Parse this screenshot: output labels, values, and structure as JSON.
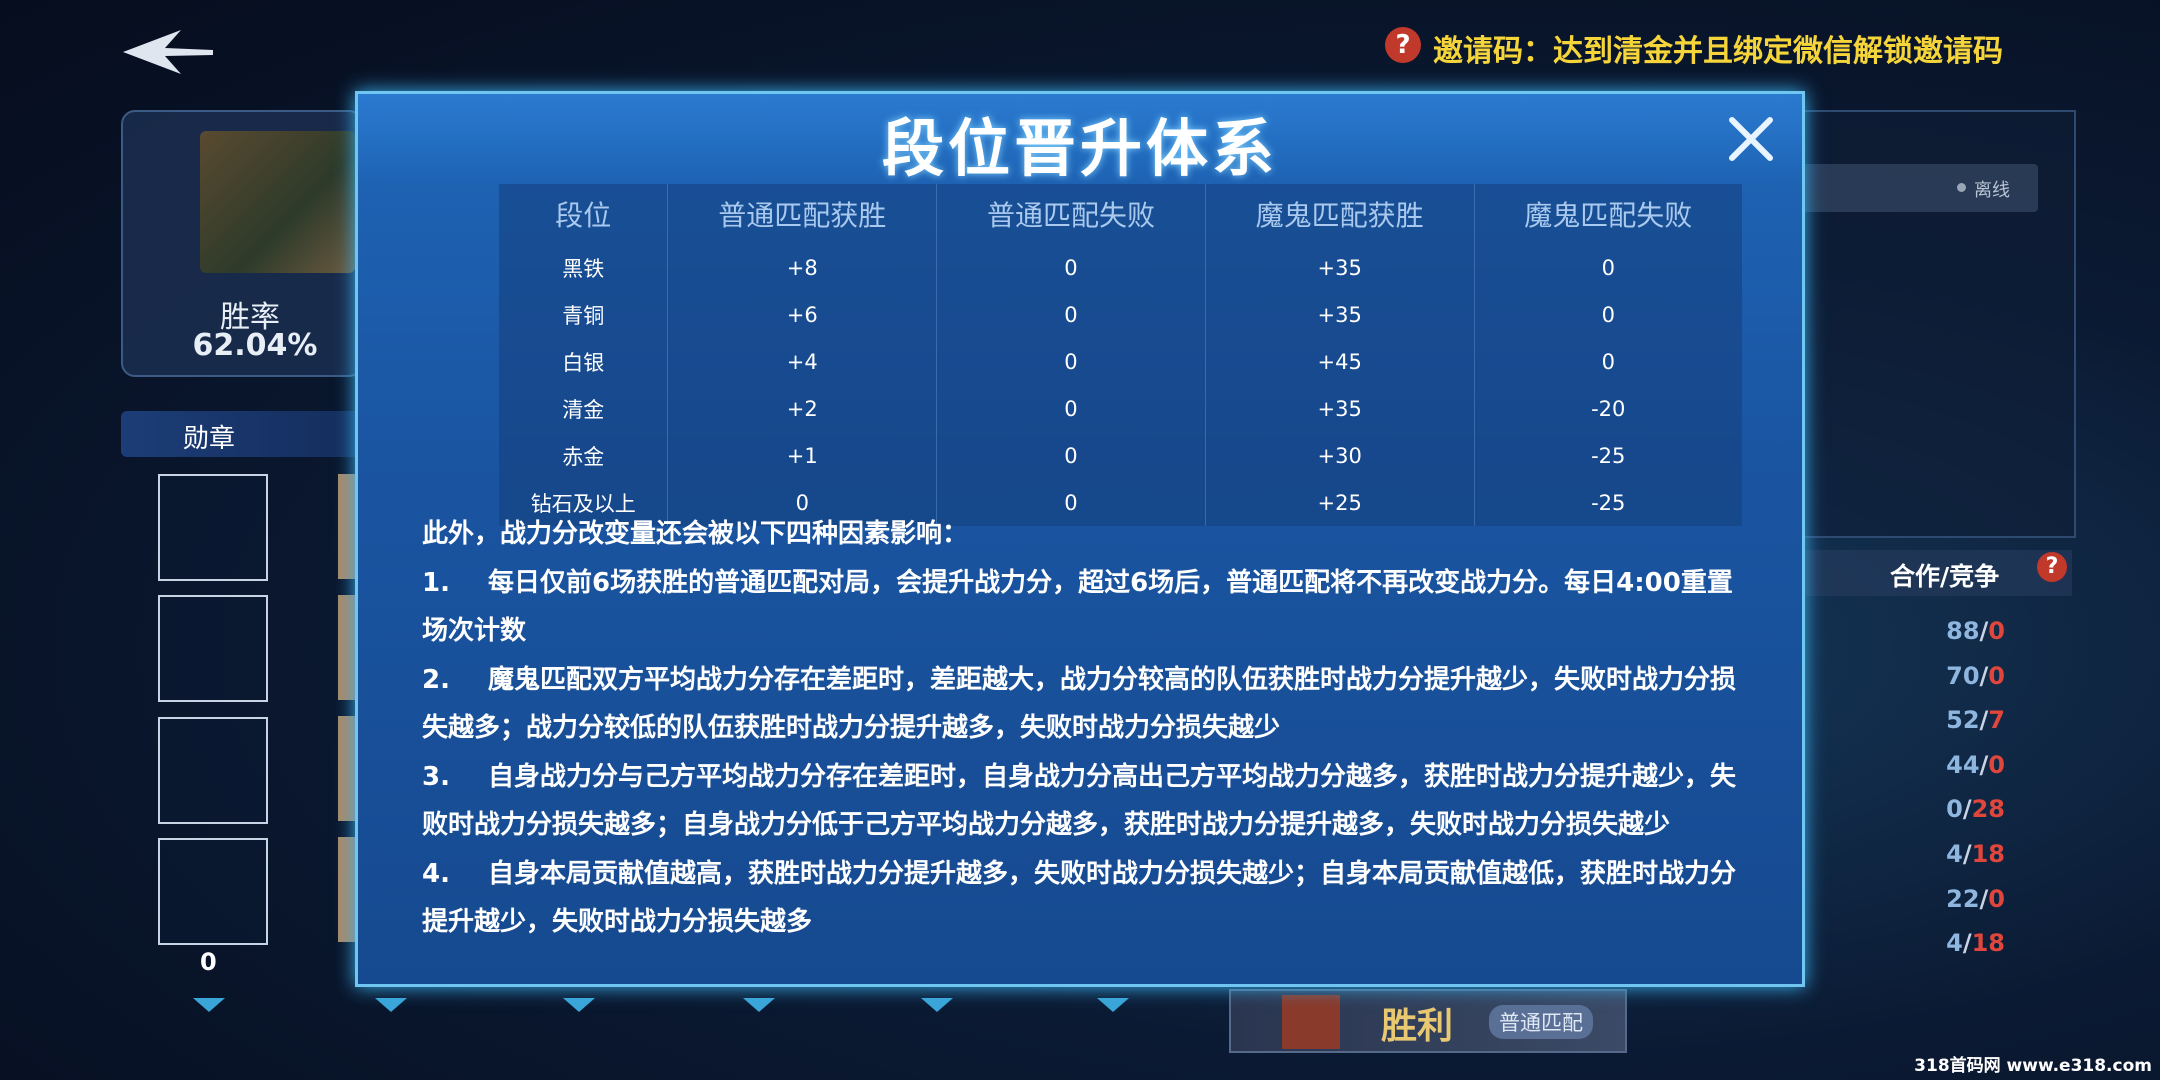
{
  "header": {
    "invite_text": "邀请码：达到清金并且绑定微信解锁邀请码",
    "help_icon": "?"
  },
  "profile": {
    "win_rate_label": "胜率",
    "win_rate": "62.04%",
    "medal_tab": "勋章",
    "medal_count": "0"
  },
  "modal": {
    "title": "段位晋升体系",
    "table": {
      "headers": [
        "段位",
        "普通匹配获胜",
        "普通匹配失败",
        "魔鬼匹配获胜",
        "魔鬼匹配失败"
      ],
      "rows": [
        [
          "黑铁",
          "+8",
          "0",
          "+35",
          "0"
        ],
        [
          "青铜",
          "+6",
          "0",
          "+35",
          "0"
        ],
        [
          "白银",
          "+4",
          "0",
          "+45",
          "0"
        ],
        [
          "清金",
          "+2",
          "0",
          "+35",
          "-20"
        ],
        [
          "赤金",
          "+1",
          "0",
          "+30",
          "-25"
        ],
        [
          "钻石及以上",
          "0",
          "0",
          "+25",
          "-25"
        ]
      ]
    },
    "intro": "此外，战力分改变量还会被以下四种因素影响：",
    "items": [
      {
        "number": "1.",
        "text": "每日仅前6场获胜的普通匹配对局，会提升战力分，超过6场后，普通匹配将不再改变战力分。每日4:00重置场次计数"
      },
      {
        "number": "2.",
        "text": "魔鬼匹配双方平均战力分存在差距时，差距越大，战力分较高的队伍获胜时战力分提升越少，失败时战力分损失越多；战力分较低的队伍获胜时战力分提升越多，失败时战力分损失越少"
      },
      {
        "number": "3.",
        "text": "自身战力分与己方平均战力分存在差距时，自身战力分高出己方平均战力分越多，获胜时战力分提升越少，失败时战力分损失越多；自身战力分低于己方平均战力分越多，获胜时战力分提升越多，失败时战力分损失越少"
      },
      {
        "number": "4.",
        "text": "自身本局贡献值越高，获胜时战力分提升越多，失败时战力分损失越少；自身本局贡献值越低，获胜时战力分提升越少，失败时战力分损失越多"
      }
    ]
  },
  "side": {
    "status": "离线",
    "stats_label": "合作/竞争",
    "separator": "/",
    "stats": [
      [
        "88",
        "0"
      ],
      [
        "70",
        "0"
      ],
      [
        "52",
        "7"
      ],
      [
        "44",
        "0"
      ],
      [
        "0",
        "28"
      ],
      [
        "4",
        "18"
      ],
      [
        "22",
        "0"
      ],
      [
        "4",
        "18"
      ]
    ]
  },
  "match_card": {
    "result": "胜利",
    "mode": "普通匹配"
  },
  "watermark": "318首码网 www.e318.com"
}
